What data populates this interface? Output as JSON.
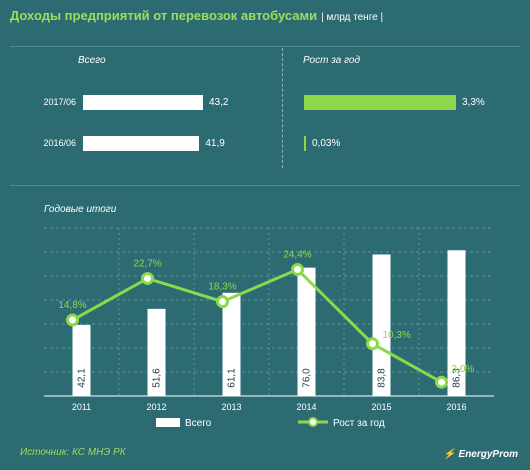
{
  "title": "Доходы предприятий от перевозок автобусами",
  "unit": "| млрд тенге |",
  "top": {
    "left_label": "Всего",
    "right_label": "Рост за год",
    "rows": [
      {
        "period": "2017/06",
        "total": 43.2,
        "total_label": "43,2",
        "growth": 3.3,
        "growth_label": "3,3%"
      },
      {
        "period": "2016/06",
        "total": 41.9,
        "total_label": "41,9",
        "growth": 0.03,
        "growth_label": "0,03%"
      }
    ]
  },
  "chart_data": {
    "type": "bar",
    "title": "Годовые итоги",
    "categories": [
      "2011",
      "2012",
      "2013",
      "2014",
      "2015",
      "2016"
    ],
    "series": [
      {
        "name": "Всего",
        "type": "bar",
        "values": [
          42.1,
          51.6,
          61.1,
          76.0,
          83.8,
          86.3
        ],
        "labels": [
          "42,1",
          "51,6",
          "61,1",
          "76,0",
          "83,8",
          "86,3"
        ]
      },
      {
        "name": "Рост за год",
        "type": "line",
        "values": [
          14.8,
          22.7,
          18.3,
          24.4,
          10.3,
          3.0
        ],
        "labels": [
          "14,8%",
          "22,7%",
          "18,3%",
          "24,4%",
          "10,3%",
          "3,0%"
        ]
      }
    ],
    "legend_position": "bottom"
  },
  "source": "Источник: КС МНЭ РК",
  "brand": "EnergyProm",
  "colors": {
    "accent": "#8cd84a",
    "background": "#2d6b73",
    "bar": "#ffffff"
  }
}
